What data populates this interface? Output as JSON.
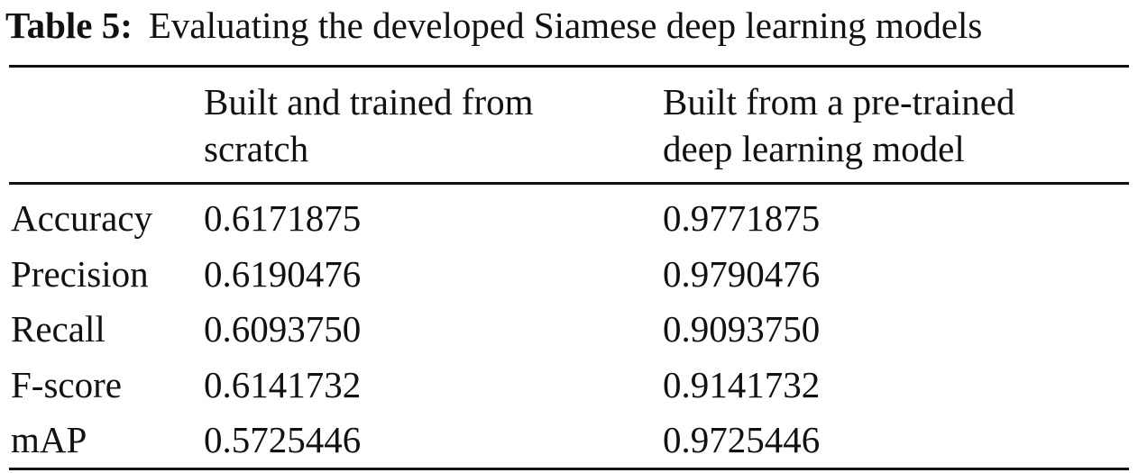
{
  "caption": {
    "label": "Table 5:",
    "text": "Evaluating the developed Siamese deep learning models"
  },
  "table": {
    "columns": [
      "Built and trained from scratch",
      "Built from a pre-trained deep learning model"
    ],
    "rows": [
      [
        "Accuracy",
        "0.6171875",
        "0.9771875"
      ],
      [
        "Precision",
        "0.6190476",
        "0.9790476"
      ],
      [
        "Recall",
        "0.6093750",
        "0.9093750"
      ],
      [
        "F-score",
        "0.6141732",
        "0.9141732"
      ],
      [
        "mAP",
        "0.5725446",
        "0.9725446"
      ]
    ]
  }
}
